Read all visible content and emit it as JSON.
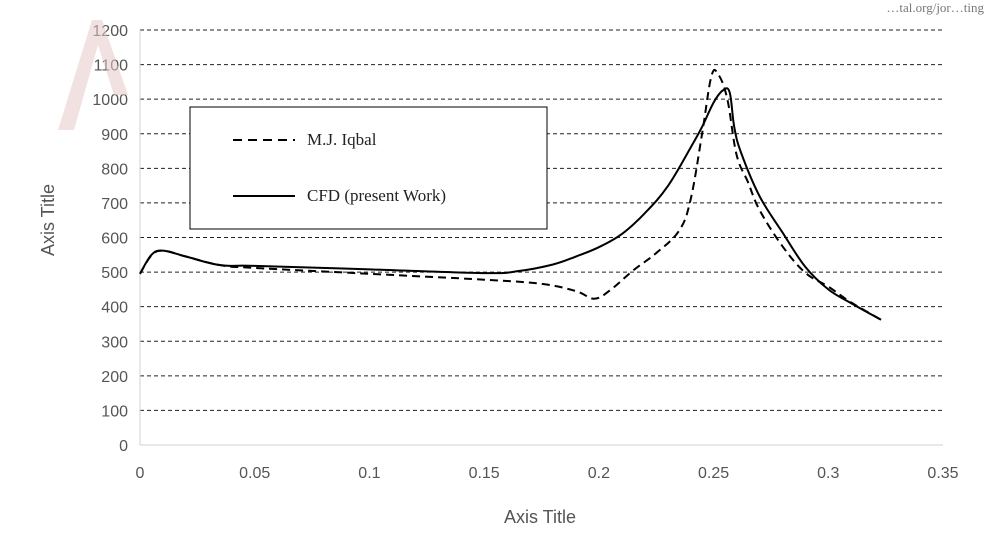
{
  "chart_data": {
    "type": "line",
    "title": "",
    "xlabel": "Axis Title",
    "ylabel": "Axis Title",
    "xlim": [
      0,
      0.35
    ],
    "ylim": [
      0,
      1200
    ],
    "xticks": [
      0,
      0.05,
      0.1,
      0.15,
      0.2,
      0.25,
      0.3,
      0.35
    ],
    "xtick_labels": [
      "0",
      "0.05",
      "0.1",
      "0.15",
      "0.2",
      "0.25",
      "0.3",
      "0.35"
    ],
    "yticks": [
      0,
      100,
      200,
      300,
      400,
      500,
      600,
      700,
      800,
      900,
      1000,
      1100,
      1200
    ],
    "ytick_labels": [
      "0",
      "100",
      "200",
      "300",
      "400",
      "500",
      "600",
      "700",
      "800",
      "900",
      "1000",
      "1100",
      "1200"
    ],
    "grid": "horizontal dashed",
    "legend": "upper-left, boxed",
    "series": [
      {
        "name": "M.J. Iqbal",
        "style": "dashed",
        "color": "#000000",
        "x": [
          0,
          0.005,
          0.01,
          0.02,
          0.035,
          0.05,
          0.1,
          0.15,
          0.175,
          0.19,
          0.198,
          0.205,
          0.215,
          0.225,
          0.235,
          0.24,
          0.245,
          0.249,
          0.252,
          0.256,
          0.26,
          0.265,
          0.27,
          0.28,
          0.29,
          0.3,
          0.31,
          0.323
        ],
        "y": [
          495,
          548,
          562,
          545,
          520,
          512,
          495,
          478,
          466,
          445,
          423,
          448,
          505,
          555,
          620,
          710,
          900,
          1065,
          1072,
          1000,
          840,
          760,
          680,
          575,
          498,
          458,
          412,
          362
        ]
      },
      {
        "name": "CFD (present Work)",
        "style": "solid",
        "color": "#000000",
        "x": [
          0,
          0.005,
          0.01,
          0.02,
          0.035,
          0.05,
          0.1,
          0.15,
          0.165,
          0.18,
          0.19,
          0.2,
          0.21,
          0.22,
          0.23,
          0.24,
          0.245,
          0.25,
          0.254,
          0.257,
          0.259,
          0.262,
          0.27,
          0.28,
          0.29,
          0.3,
          0.31,
          0.323
        ],
        "y": [
          495,
          550,
          562,
          545,
          520,
          518,
          508,
          497,
          503,
          522,
          545,
          572,
          610,
          670,
          748,
          860,
          920,
          990,
          1025,
          1020,
          920,
          845,
          720,
          615,
          515,
          450,
          410,
          362
        ]
      }
    ]
  },
  "clipped_header_text": "…tal.org/jor…ting"
}
